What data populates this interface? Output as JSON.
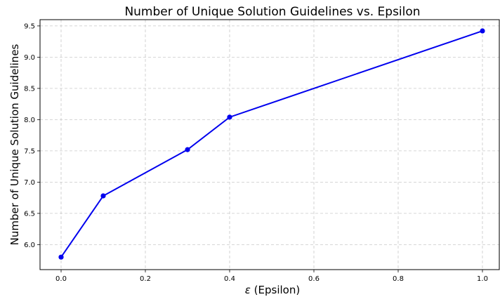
{
  "chart_data": {
    "type": "line",
    "title": "Number of Unique Solution Guidelines vs. Epsilon",
    "xlabel_symbol": "ε",
    "xlabel_text": " (Epsilon)",
    "ylabel": "Number of Unique Solution Guidelines",
    "xlim": [
      -0.05,
      1.04
    ],
    "ylim": [
      5.6,
      9.6
    ],
    "xticks": [
      0.0,
      0.2,
      0.4,
      0.6,
      0.8,
      1.0
    ],
    "xtick_labels": [
      "0.0",
      "0.2",
      "0.4",
      "0.6",
      "0.8",
      "1.0"
    ],
    "yticks": [
      6.0,
      6.5,
      7.0,
      7.5,
      8.0,
      8.5,
      9.0,
      9.5
    ],
    "ytick_labels": [
      "6.0",
      "6.5",
      "7.0",
      "7.5",
      "8.0",
      "8.5",
      "9.0",
      "9.5"
    ],
    "grid": true,
    "series": [
      {
        "color": "#0000ee",
        "marker": "circle",
        "x": [
          0.0,
          0.1,
          0.3,
          0.4,
          1.0
        ],
        "y": [
          5.8,
          6.78,
          7.52,
          8.04,
          9.42
        ]
      }
    ]
  }
}
